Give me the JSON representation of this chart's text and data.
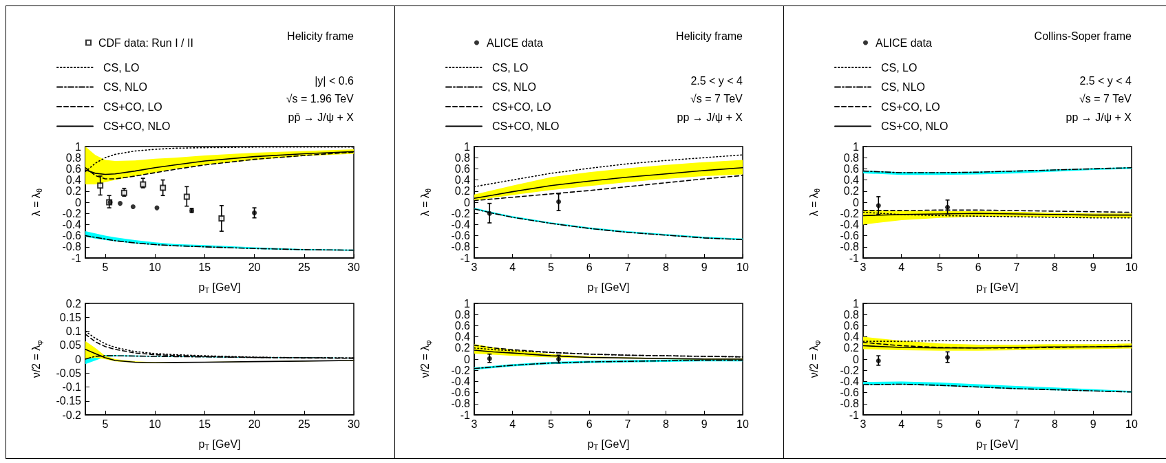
{
  "chart_data": [
    {
      "type": "line",
      "title": "Helicity frame",
      "annotations": [
        "|y| < 0.6",
        "√s = 1.96 TeV",
        "pp̄ → J/ψ + X"
      ],
      "xlabel": "p$_{T}$ [GeV]",
      "ylabel": "λ = λ$_{θ}$",
      "legend": "top left",
      "xlim": [
        3,
        30
      ],
      "xticks": [
        5,
        10,
        15,
        20,
        25,
        30
      ],
      "ylim": [
        -1,
        1
      ],
      "yticks": [
        -1,
        -0.8,
        -0.6,
        -0.4,
        -0.2,
        0,
        0.2,
        0.4,
        0.6,
        0.8,
        1
      ],
      "x": [
        3,
        4,
        5,
        6,
        8,
        10,
        12,
        15,
        20,
        25,
        30
      ],
      "series": [
        {
          "name": "CS, LO",
          "color": "#000000",
          "line_style": "dotted",
          "values": [
            0.55,
            0.7,
            0.8,
            0.86,
            0.92,
            0.95,
            0.97,
            0.98,
            0.99,
            0.99,
            0.99
          ]
        },
        {
          "name": "CS, NLO",
          "color": "#000000",
          "line_style": "dashdot",
          "values": [
            -0.6,
            -0.63,
            -0.66,
            -0.69,
            -0.73,
            -0.76,
            -0.78,
            -0.8,
            -0.83,
            -0.85,
            -0.86
          ],
          "lower": [
            -0.62,
            -0.65,
            -0.68,
            -0.7,
            -0.74,
            -0.77,
            -0.79,
            -0.81,
            -0.84,
            -0.86,
            -0.87
          ],
          "upper": [
            -0.52,
            -0.56,
            -0.6,
            -0.63,
            -0.68,
            -0.72,
            -0.75,
            -0.77,
            -0.81,
            -0.84,
            -0.85
          ]
        },
        {
          "name": "CS+CO, LO",
          "color": "#000000",
          "line_style": "dashed",
          "values": [
            0.62,
            0.48,
            0.42,
            0.42,
            0.47,
            0.53,
            0.59,
            0.67,
            0.77,
            0.84,
            0.9
          ]
        },
        {
          "name": "CS+CO, NLO",
          "color": "#000000",
          "line_style": "solid",
          "values": [
            0.58,
            0.52,
            0.5,
            0.51,
            0.56,
            0.62,
            0.67,
            0.74,
            0.82,
            0.87,
            0.91
          ],
          "lower": [
            0.32,
            0.32,
            0.36,
            0.4,
            0.47,
            0.53,
            0.6,
            0.67,
            0.76,
            0.83,
            0.87
          ],
          "upper": [
            1,
            0.85,
            0.76,
            0.74,
            0.75,
            0.78,
            0.8,
            0.84,
            0.89,
            0.92,
            0.95
          ]
        },
        {
          "type": "scatter",
          "name": "CDF data: Run I / II",
          "marker": "square",
          "color": "#000000",
          "x": [
            4.5,
            5.4,
            6.9,
            8.8,
            10.8,
            13.2,
            16.7
          ],
          "values": [
            0.3,
            0,
            0.17,
            0.32,
            0.26,
            0.1,
            -0.29
          ],
          "errors": [
            [
              0.13,
              0.47
            ],
            [
              -0.1,
              0.12
            ],
            [
              0.11,
              0.25
            ],
            [
              0.26,
              0.43
            ],
            [
              0.12,
              0.4
            ],
            [
              -0.07,
              0.28
            ],
            [
              -0.52,
              -0.06
            ]
          ]
        },
        {
          "type": "scatter",
          "marker": "circle",
          "color": "#000000",
          "x": [
            5.5,
            6.5,
            7.8,
            10.2,
            13.7,
            20
          ],
          "values": [
            0,
            -0.02,
            -0.08,
            -0.1,
            -0.15,
            -0.19
          ],
          "errors": [
            null,
            null,
            null,
            null,
            [
              -0.18,
              -0.11
            ],
            [
              -0.28,
              -0.1
            ]
          ]
        }
      ]
    },
    {
      "type": "line",
      "xlabel": "p$_{T}$ [GeV]",
      "ylabel": "ν/2 = λ$_{φ}$",
      "xlim": [
        3,
        30
      ],
      "xticks": [
        5,
        10,
        15,
        20,
        25,
        30
      ],
      "ylim": [
        -0.2,
        0.2
      ],
      "yticks": [
        -0.2,
        -0.15,
        -0.1,
        -0.05,
        0,
        0.05,
        0.1,
        0.15,
        0.2
      ],
      "x": [
        3,
        4,
        5,
        6,
        8,
        10,
        12,
        15,
        20,
        25,
        30
      ],
      "series": [
        {
          "color": "#000000",
          "line_style": "dotted",
          "values": [
            0.1,
            0.075,
            0.055,
            0.042,
            0.027,
            0.02,
            0.016,
            0.012,
            0.007,
            0.005,
            0.004
          ]
        },
        {
          "color": "#000000",
          "line_style": "dashdot",
          "values": [
            0,
            0.01,
            0.012,
            0.012,
            0.011,
            0.01,
            0.009,
            0.008,
            0.006,
            0.005,
            0.004
          ],
          "lower": [
            -0.018,
            -0.005,
            0.008,
            0.01,
            0.009,
            0.009,
            0.008,
            0.007,
            0.005,
            0.004,
            0.003
          ],
          "upper": [
            0.015,
            0.015,
            0.014,
            0.014,
            0.013,
            0.012,
            0.01,
            0.009,
            0.007,
            0.006,
            0.005
          ]
        },
        {
          "color": "#000000",
          "line_style": "dashed",
          "values": [
            0.09,
            0.062,
            0.045,
            0.035,
            0.022,
            0.016,
            0.013,
            0.01,
            0.006,
            0.004,
            0.003
          ]
        },
        {
          "color": "#000000",
          "line_style": "solid",
          "values": [
            0.035,
            0.02,
            0.005,
            -0.005,
            -0.011,
            -0.013,
            -0.012,
            -0.011,
            -0.009,
            -0.007,
            -0.005
          ],
          "lower": [
            0,
            0.005,
            0,
            -0.008,
            -0.013,
            -0.014,
            -0.013,
            -0.012,
            -0.01,
            -0.008,
            -0.006
          ],
          "upper": [
            0.065,
            0.04,
            0.012,
            0,
            -0.008,
            -0.011,
            -0.011,
            -0.01,
            -0.008,
            -0.006,
            -0.004
          ]
        }
      ]
    },
    {
      "type": "line",
      "title": "Helicity frame",
      "annotations": [
        "2.5 < y < 4",
        "√s = 7 TeV",
        "pp → J/ψ + X"
      ],
      "xlabel": "p$_{T}$ [GeV]",
      "ylabel": "λ = λ$_{θ}$",
      "legend": "top left",
      "xlim": [
        3,
        10
      ],
      "xticks": [
        3,
        4,
        5,
        6,
        7,
        8,
        9,
        10
      ],
      "ylim": [
        -1,
        1
      ],
      "yticks": [
        -1,
        -0.8,
        -0.6,
        -0.4,
        -0.2,
        0,
        0.2,
        0.4,
        0.6,
        0.8,
        1
      ],
      "x": [
        3,
        3.5,
        4,
        5,
        6,
        7,
        8,
        9,
        10
      ],
      "series": [
        {
          "name": "CS, LO",
          "color": "#000000",
          "line_style": "dotted",
          "values": [
            0.28,
            0.34,
            0.4,
            0.52,
            0.61,
            0.69,
            0.75,
            0.8,
            0.85
          ]
        },
        {
          "name": "CS, NLO",
          "color": "#000000",
          "line_style": "dashdot",
          "values": [
            -0.12,
            -0.2,
            -0.27,
            -0.38,
            -0.47,
            -0.54,
            -0.59,
            -0.64,
            -0.67
          ],
          "lower": [
            -0.13,
            -0.21,
            -0.28,
            -0.39,
            -0.48,
            -0.55,
            -0.6,
            -0.65,
            -0.68
          ],
          "upper": [
            -0.1,
            -0.18,
            -0.25,
            -0.36,
            -0.45,
            -0.52,
            -0.57,
            -0.62,
            -0.65
          ]
        },
        {
          "name": "CS+CO, LO",
          "color": "#000000",
          "line_style": "dashed",
          "values": [
            0.03,
            0.06,
            0.09,
            0.15,
            0.21,
            0.28,
            0.35,
            0.42,
            0.48
          ]
        },
        {
          "name": "CS+CO, NLO",
          "color": "#000000",
          "line_style": "solid",
          "values": [
            0.07,
            0.13,
            0.19,
            0.3,
            0.38,
            0.45,
            0.51,
            0.57,
            0.62
          ],
          "lower": [
            0.03,
            0.08,
            0.13,
            0.22,
            0.29,
            0.36,
            0.42,
            0.47,
            0.5
          ],
          "upper": [
            0.14,
            0.22,
            0.3,
            0.45,
            0.54,
            0.61,
            0.67,
            0.72,
            0.76
          ]
        },
        {
          "type": "scatter",
          "name": "ALICE data",
          "marker": "circle",
          "color": "#000000",
          "x": [
            3.4,
            5.2
          ],
          "values": [
            -0.2,
            0.01
          ],
          "errors": [
            [
              -0.37,
              -0.02
            ],
            [
              -0.15,
              0.15
            ]
          ]
        }
      ]
    },
    {
      "type": "line",
      "xlabel": "p$_{T}$ [GeV]",
      "ylabel": "ν/2 = λ$_{φ}$",
      "xlim": [
        3,
        10
      ],
      "xticks": [
        3,
        4,
        5,
        6,
        7,
        8,
        9,
        10
      ],
      "ylim": [
        -1,
        1
      ],
      "yticks": [
        -1,
        -0.8,
        -0.6,
        -0.4,
        -0.2,
        0,
        0.2,
        0.4,
        0.6,
        0.8,
        1
      ],
      "x": [
        3,
        3.5,
        4,
        5,
        6,
        7,
        8,
        9,
        10
      ],
      "series": [
        {
          "color": "#000000",
          "line_style": "dotted",
          "values": [
            0.2,
            0.17,
            0.15,
            0.12,
            0.09,
            0.07,
            0.06,
            0.05,
            0.04
          ]
        },
        {
          "color": "#000000",
          "line_style": "dashdot",
          "values": [
            -0.17,
            -0.14,
            -0.11,
            -0.07,
            -0.05,
            -0.04,
            -0.03,
            -0.02,
            -0.02
          ],
          "lower": [
            -0.19,
            -0.16,
            -0.13,
            -0.09,
            -0.07,
            -0.06,
            -0.05,
            -0.04,
            -0.04
          ],
          "upper": [
            -0.15,
            -0.12,
            -0.09,
            -0.05,
            -0.03,
            -0.02,
            -0.01,
            0,
            0
          ]
        },
        {
          "color": "#000000",
          "line_style": "dashed",
          "values": [
            0.25,
            0.2,
            0.17,
            0.12,
            0.09,
            0.07,
            0.06,
            0.05,
            0.04
          ]
        },
        {
          "color": "#000000",
          "line_style": "solid",
          "values": [
            0.16,
            0.13,
            0.11,
            0.06,
            0.03,
            0.02,
            0.01,
            0,
            0
          ],
          "lower": [
            0.1,
            0.08,
            0.06,
            0.03,
            0.02,
            0.01,
            0,
            -0.01,
            -0.01
          ],
          "upper": [
            0.27,
            0.21,
            0.17,
            0.09,
            0.05,
            0.03,
            0.02,
            0.01,
            0.01
          ]
        },
        {
          "type": "scatter",
          "marker": "circle",
          "color": "#000000",
          "x": [
            3.4,
            5.2
          ],
          "values": [
            0.01,
            0
          ],
          "errors": [
            [
              -0.06,
              0.09
            ],
            [
              -0.07,
              0.07
            ]
          ]
        }
      ]
    },
    {
      "type": "line",
      "title": "Collins-Soper frame",
      "annotations": [
        "2.5 < y < 4",
        "√s = 7 TeV",
        "pp → J/ψ + X"
      ],
      "xlabel": "p$_{T}$ [GeV]",
      "ylabel": "λ = λ$_{θ}$",
      "legend": "top left",
      "xlim": [
        3,
        10
      ],
      "xticks": [
        3,
        4,
        5,
        6,
        7,
        8,
        9,
        10
      ],
      "ylim": [
        -1,
        1
      ],
      "yticks": [
        -1,
        -0.8,
        -0.6,
        -0.4,
        -0.2,
        0,
        0.2,
        0.4,
        0.6,
        0.8,
        1
      ],
      "x": [
        3,
        4,
        5,
        6,
        7,
        8,
        9,
        10
      ],
      "series": [
        {
          "name": "CS, LO",
          "color": "#000000",
          "line_style": "dotted",
          "values": [
            -0.18,
            -0.22,
            -0.24,
            -0.25,
            -0.26,
            -0.27,
            -0.28,
            -0.28
          ]
        },
        {
          "name": "CS, NLO",
          "color": "#000000",
          "line_style": "dashdot",
          "values": [
            0.56,
            0.53,
            0.53,
            0.54,
            0.56,
            0.58,
            0.6,
            0.62
          ],
          "lower": [
            0.52,
            0.49,
            0.49,
            0.5,
            0.52,
            0.55,
            0.58,
            0.6
          ],
          "upper": [
            0.57,
            0.54,
            0.54,
            0.55,
            0.57,
            0.59,
            0.61,
            0.63
          ]
        },
        {
          "name": "CS+CO, LO",
          "color": "#000000",
          "line_style": "dashed",
          "values": [
            -0.15,
            -0.15,
            -0.14,
            -0.14,
            -0.15,
            -0.16,
            -0.17,
            -0.18
          ]
        },
        {
          "name": "CS+CO, NLO",
          "color": "#000000",
          "line_style": "solid",
          "values": [
            -0.24,
            -0.22,
            -0.21,
            -0.2,
            -0.21,
            -0.22,
            -0.23,
            -0.23
          ],
          "lower": [
            -0.4,
            -0.32,
            -0.28,
            -0.26,
            -0.26,
            -0.27,
            -0.28,
            -0.28
          ],
          "upper": [
            -0.14,
            -0.15,
            -0.16,
            -0.16,
            -0.17,
            -0.19,
            -0.2,
            -0.2
          ]
        },
        {
          "type": "scatter",
          "name": "ALICE data",
          "marker": "circle",
          "color": "#000000",
          "x": [
            3.4,
            5.2
          ],
          "values": [
            -0.06,
            -0.09
          ],
          "errors": [
            [
              -0.22,
              0.1
            ],
            [
              -0.21,
              0.04
            ]
          ]
        }
      ]
    },
    {
      "type": "line",
      "xlabel": "p$_{T}$ [GeV]",
      "ylabel": "ν/2 = λ$_{φ}$",
      "xlim": [
        3,
        10
      ],
      "xticks": [
        3,
        4,
        5,
        6,
        7,
        8,
        9,
        10
      ],
      "ylim": [
        -1,
        1
      ],
      "yticks": [
        -1,
        -0.8,
        -0.6,
        -0.4,
        -0.2,
        0,
        0.2,
        0.4,
        0.6,
        0.8,
        1
      ],
      "x": [
        3,
        4,
        5,
        6,
        7,
        8,
        9,
        10
      ],
      "series": [
        {
          "color": "#000000",
          "line_style": "dotted",
          "values": [
            0.32,
            0.32,
            0.33,
            0.33,
            0.33,
            0.33,
            0.33,
            0.33
          ]
        },
        {
          "color": "#000000",
          "line_style": "dashdot",
          "values": [
            -0.46,
            -0.45,
            -0.47,
            -0.5,
            -0.53,
            -0.55,
            -0.57,
            -0.59
          ],
          "lower": [
            -0.47,
            -0.46,
            -0.48,
            -0.51,
            -0.54,
            -0.56,
            -0.58,
            -0.6
          ],
          "upper": [
            -0.41,
            -0.4,
            -0.42,
            -0.45,
            -0.48,
            -0.51,
            -0.54,
            -0.57
          ]
        },
        {
          "color": "#000000",
          "line_style": "dashed",
          "values": [
            0.3,
            0.24,
            0.21,
            0.2,
            0.2,
            0.21,
            0.22,
            0.23
          ]
        },
        {
          "color": "#000000",
          "line_style": "solid",
          "values": [
            0.24,
            0.21,
            0.2,
            0.2,
            0.21,
            0.22,
            0.22,
            0.23
          ],
          "lower": [
            0.18,
            0.16,
            0.15,
            0.15,
            0.16,
            0.17,
            0.18,
            0.19
          ],
          "upper": [
            0.4,
            0.33,
            0.28,
            0.26,
            0.26,
            0.27,
            0.27,
            0.28
          ]
        },
        {
          "type": "scatter",
          "marker": "circle",
          "color": "#000000",
          "x": [
            3.4,
            5.2
          ],
          "values": [
            -0.03,
            0.03
          ],
          "errors": [
            [
              -0.11,
              0.06
            ],
            [
              -0.06,
              0.13
            ]
          ]
        }
      ]
    }
  ]
}
